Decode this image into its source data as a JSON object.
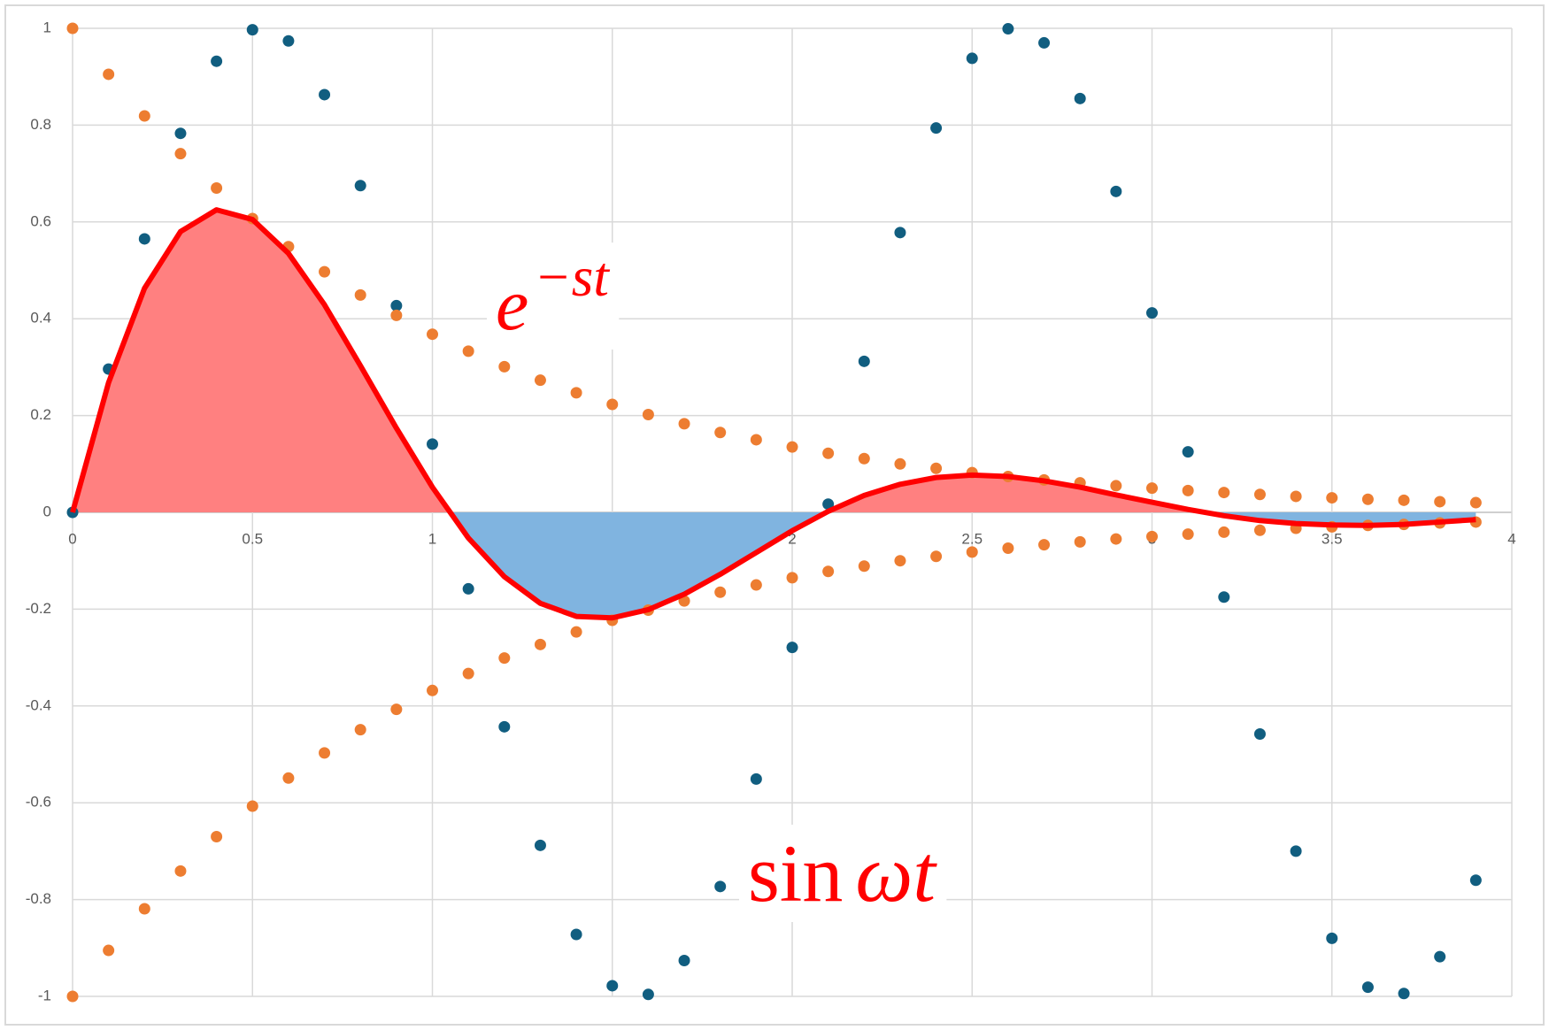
{
  "chart_data": {
    "type": "scatter",
    "x": [
      0,
      0.1,
      0.2,
      0.3,
      0.4,
      0.5,
      0.6,
      0.7,
      0.8,
      0.9,
      1.0,
      1.1,
      1.2,
      1.3,
      1.4,
      1.5,
      1.6,
      1.7,
      1.8,
      1.9,
      2.0,
      2.1,
      2.2,
      2.3,
      2.4,
      2.5,
      2.6,
      2.7,
      2.8,
      2.9,
      3.0,
      3.1,
      3.2,
      3.3,
      3.4,
      3.5,
      3.6,
      3.7,
      3.8,
      3.9
    ],
    "series": [
      {
        "color": "#115e80",
        "style": "markers",
        "values": [
          0,
          0.296,
          0.565,
          0.783,
          0.932,
          0.997,
          0.974,
          0.863,
          0.675,
          0.427,
          0.141,
          -0.158,
          -0.443,
          -0.688,
          -0.872,
          -0.978,
          -0.996,
          -0.926,
          -0.773,
          -0.551,
          -0.279,
          0.017,
          0.312,
          0.578,
          0.794,
          0.938,
          0.999,
          0.97,
          0.855,
          0.663,
          0.412,
          0.125,
          -0.175,
          -0.458,
          -0.7,
          -0.88,
          -0.981,
          -0.994,
          -0.918,
          -0.76
        ]
      },
      {
        "color": "#ed7d31",
        "style": "markers",
        "values": [
          1,
          0.905,
          0.819,
          0.741,
          0.67,
          0.607,
          0.549,
          0.497,
          0.449,
          0.407,
          0.368,
          0.333,
          0.301,
          0.273,
          0.247,
          0.223,
          0.202,
          0.183,
          0.165,
          0.15,
          0.135,
          0.122,
          0.111,
          0.1,
          0.091,
          0.082,
          0.074,
          0.067,
          0.061,
          0.055,
          0.05,
          0.045,
          0.041,
          0.037,
          0.033,
          0.03,
          0.027,
          0.025,
          0.022,
          0.02
        ]
      },
      {
        "color": "#ed7d31",
        "style": "markers",
        "values": [
          -1,
          -0.905,
          -0.819,
          -0.741,
          -0.67,
          -0.607,
          -0.549,
          -0.497,
          -0.449,
          -0.407,
          -0.368,
          -0.333,
          -0.301,
          -0.273,
          -0.247,
          -0.223,
          -0.202,
          -0.183,
          -0.165,
          -0.15,
          -0.135,
          -0.122,
          -0.111,
          -0.1,
          -0.091,
          -0.082,
          -0.074,
          -0.067,
          -0.061,
          -0.055,
          -0.05,
          -0.045,
          -0.041,
          -0.037,
          -0.033,
          -0.03,
          -0.027,
          -0.025,
          -0.022,
          -0.02
        ]
      },
      {
        "color": "#ff0000",
        "style": "line",
        "fill_colors": [
          "#ff8080",
          "#80b4e0"
        ],
        "values": [
          0,
          0.268,
          0.463,
          0.58,
          0.625,
          0.605,
          0.535,
          0.429,
          0.303,
          0.174,
          0.052,
          -0.053,
          -0.133,
          -0.188,
          -0.215,
          -0.218,
          -0.201,
          -0.169,
          -0.128,
          -0.083,
          -0.038,
          0.002,
          0.035,
          0.058,
          0.072,
          0.077,
          0.074,
          0.065,
          0.052,
          0.036,
          0.021,
          0.006,
          -0.007,
          -0.017,
          -0.023,
          -0.026,
          -0.027,
          -0.025,
          -0.02,
          -0.015
        ]
      }
    ],
    "xlim": [
      0,
      4
    ],
    "xticks": [
      0,
      0.5,
      1,
      1.5,
      2,
      2.5,
      3,
      3.5,
      4
    ],
    "ylim": [
      -1,
      1
    ],
    "yticks": [
      -1,
      -0.8,
      -0.6,
      -0.4,
      -0.2,
      0,
      0.2,
      0.4,
      0.6,
      0.8,
      1
    ],
    "grid": true,
    "annotations": [
      {
        "parts": [
          "e",
          "−st"
        ]
      },
      {
        "parts": [
          "sin",
          "ωt"
        ]
      }
    ]
  }
}
